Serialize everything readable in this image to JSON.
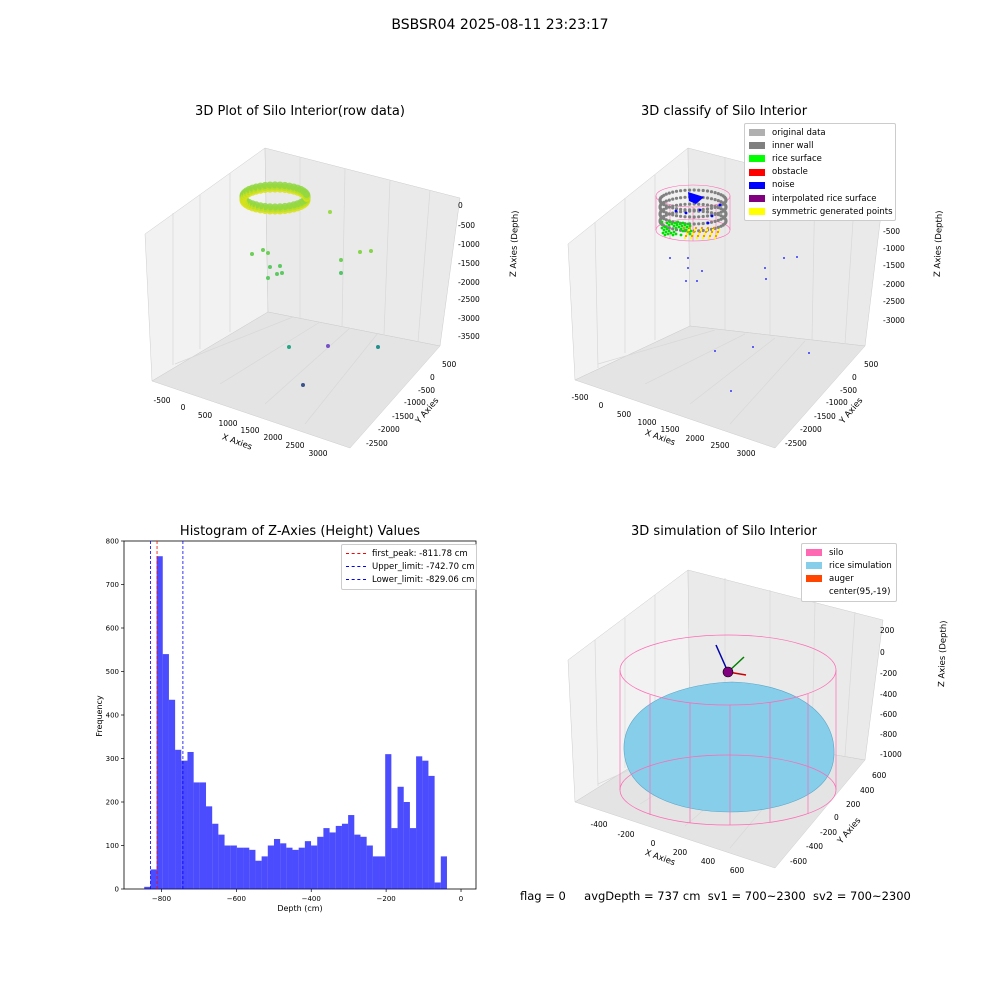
{
  "figure": {
    "title": "BSBSR04 2025-08-11 23:23:17",
    "status": {
      "flag": "flag = 0",
      "avg_depth": "avgDepth = 737 cm",
      "sv1": "sv1 = 700~2300",
      "sv2": "sv2 = 700~2300"
    }
  },
  "chart_data": [
    {
      "type": "scatter",
      "title": "3D Plot of Silo Interior(row data)",
      "xlabel": "X Axies",
      "ylabel": "Y Axies",
      "zlabel": "Z Axies (Depth)",
      "x_ticks": [
        "-500",
        "0",
        "500",
        "1000",
        "1500",
        "2000",
        "2500",
        "3000"
      ],
      "y_ticks": [
        "500",
        "0",
        "-500",
        "-1000",
        "-1500",
        "-2000",
        "-2500"
      ],
      "z_ticks": [
        "0",
        "-500",
        "-1000",
        "-1500",
        "-2000",
        "-2500",
        "-3000",
        "-3500"
      ],
      "colormap": "viridis"
    },
    {
      "type": "scatter",
      "title": "3D classify of Silo Interior",
      "xlabel": "X Axies",
      "ylabel": "Y Axies",
      "zlabel": "Z Axies (Depth)",
      "x_ticks": [
        "-500",
        "0",
        "500",
        "1000",
        "1500",
        "2000",
        "2500",
        "3000"
      ],
      "y_ticks": [
        "500",
        "0",
        "-500",
        "-1000",
        "-1500",
        "-2000",
        "-2500"
      ],
      "z_ticks": [
        "0",
        "-500",
        "-1000",
        "-1500",
        "-2000",
        "-2500",
        "-3000"
      ],
      "legend": [
        {
          "label": "original data",
          "color": "#b0b0b0"
        },
        {
          "label": "inner wall",
          "color": "#808080"
        },
        {
          "label": "rice surface",
          "color": "#00ff00"
        },
        {
          "label": "obstacle",
          "color": "#ff0000"
        },
        {
          "label": "noise",
          "color": "#0000ff"
        },
        {
          "label": "interpolated rice surface",
          "color": "#800080"
        },
        {
          "label": "symmetric generated points",
          "color": "#ffff00"
        }
      ]
    },
    {
      "type": "bar",
      "title": "Histogram of Z-Axies (Height) Values",
      "xlabel": "Depth (cm)",
      "ylabel": "Frequency",
      "xlim": [
        -900,
        40
      ],
      "ylim": [
        0,
        800
      ],
      "x_ticks": [
        -800,
        -600,
        -400,
        -200,
        0
      ],
      "y_ticks": [
        0,
        100,
        200,
        300,
        400,
        500,
        600,
        700,
        800
      ],
      "bin_start": -846,
      "bin_width": 16.5,
      "values": [
        5,
        45,
        765,
        540,
        435,
        320,
        295,
        315,
        245,
        245,
        190,
        150,
        125,
        100,
        100,
        95,
        95,
        90,
        65,
        75,
        100,
        115,
        105,
        95,
        90,
        95,
        110,
        100,
        120,
        140,
        130,
        145,
        150,
        170,
        125,
        120,
        100,
        75,
        75,
        310,
        140,
        235,
        200,
        140,
        305,
        295,
        260,
        15,
        75
      ],
      "bar_color": "#0000ff",
      "lines": [
        {
          "label": "first_peak: -811.78 cm",
          "x": -811.78,
          "color": "#ff0000"
        },
        {
          "label": "Upper_limit: -742.70 cm",
          "x": -742.7,
          "color": "#0000ff"
        },
        {
          "label": "Lower_limit: -829.06 cm",
          "x": -829.06,
          "color": "#0000ff"
        }
      ]
    },
    {
      "type": "scatter",
      "title": "3D simulation of Silo Interior",
      "xlabel": "X Axies",
      "ylabel": "Y Axies",
      "zlabel": "Z Axies (Depth)",
      "x_ticks": [
        "-400",
        "-200",
        "0",
        "200",
        "400",
        "600"
      ],
      "y_ticks": [
        "600",
        "400",
        "200",
        "0",
        "-200",
        "-400",
        "-600"
      ],
      "z_ticks": [
        "200",
        "0",
        "-200",
        "-400",
        "-600",
        "-800",
        "-1000"
      ],
      "legend": [
        {
          "label": "silo",
          "color": "#ff69b4"
        },
        {
          "label": "rice simulation",
          "color": "#87ceeb"
        },
        {
          "label": "auger",
          "color": "#ff4500"
        },
        {
          "label": "center(95,-19)",
          "color": ""
        }
      ]
    }
  ]
}
